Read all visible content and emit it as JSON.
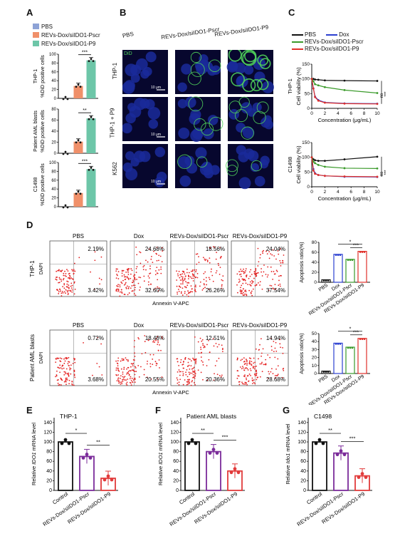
{
  "panels": {
    "A": "A",
    "B": "B",
    "C": "C",
    "D": "D",
    "E": "E",
    "F": "F",
    "G": "G"
  },
  "colors": {
    "pbs": "#8ea3d6",
    "pscr": "#f0906a",
    "p9": "#6dc6a8",
    "dox": "#2b3fd0",
    "pscr_line": "#3a9a2a",
    "p9_line": "#e0302a",
    "black": "#111111",
    "purple": "#7b2b9a",
    "red": "#e23b3b"
  },
  "panel_A": {
    "legend": [
      "PBS",
      "REVs-Dox/siIDO1-Pscr",
      "REVs-Dox/siIDO1-P9"
    ],
    "ylabel": "%DiD positive cells",
    "rows": [
      {
        "name": "THP-1",
        "sig": "***"
      },
      {
        "name": "Patient AML blasts",
        "sig": "**"
      },
      {
        "name": "C1498",
        "sig": "***"
      }
    ]
  },
  "panel_B": {
    "columns": [
      "PBS",
      "REVs-Dox/siIDO1-Pscr",
      "REVs-Dox/siIDO1-P9"
    ],
    "rows": [
      "THP-1",
      "THP-1 + P9",
      "K562"
    ],
    "stain": "DiD",
    "scale": "10 μm"
  },
  "panel_C": {
    "legend": [
      "PBS",
      "Dox",
      "REVs-Dox/siIDO1-Pscr",
      "REVs-Dox/siIDO1-P9"
    ],
    "ylabel": "Cell viability  (%)",
    "xlabel": "Concentration  (μg/mL)",
    "rows": [
      {
        "name": "THP-1",
        "sig1": "***",
        "sig2": "ns"
      },
      {
        "name": "C1498",
        "sig1": "***",
        "sig2": "ns"
      }
    ]
  },
  "panel_D": {
    "columns": [
      "PBS",
      "Dox",
      "REVs-Dox/siIDO1-Pscr",
      "REVs-Dox/siIDO1-P9"
    ],
    "xlabel": "Annexin V-APC",
    "ylabel": "DAPI",
    "rows": [
      {
        "name": "THP-1",
        "ul": [
          "2.19%",
          "24.68%",
          "18.56%",
          "24.04%"
        ],
        "lr": [
          "3.42%",
          "32.60%",
          "26.26%",
          "37.54%"
        ]
      },
      {
        "name": "Patient AML blasts",
        "ul": [
          "0.72%",
          "18.48%",
          "12.51%",
          "14.94%"
        ],
        "lr": [
          "3.68%",
          "20.55%",
          "20.36%",
          "28.68%"
        ]
      }
    ],
    "bar_ylabel": "Apoptosis ratio(%)",
    "bar_categories": [
      "PBS",
      "Dox",
      "REVs-Dox/siIDO1-Pscr",
      "REVs-Dox/siIDO1-P9"
    ],
    "bar_sig": [
      "*",
      "***"
    ]
  },
  "panels_EFG": {
    "E_title": "THP-1",
    "F_title": "Patient AML blasts",
    "G_title": "C1498",
    "ylabel_pre": "Relative ",
    "ylabel_gene_human": "IDO1",
    "ylabel_gene_mouse": "Ido1",
    "ylabel_post": " mRNA level",
    "categories": [
      "Control",
      "REVs-Dox/siIDO1-Pscr",
      "REVs-Dox/siIDO1-P9"
    ],
    "sig": [
      "**",
      "***"
    ],
    "sig_E": [
      "*",
      "**"
    ]
  },
  "chart_data": [
    {
      "type": "bar",
      "title": "THP-1",
      "categories": [
        "PBS",
        "REVs-Dox/siIDO1-Pscr",
        "REVs-Dox/siIDO1-P9"
      ],
      "values": [
        0,
        28,
        86
      ],
      "ylabel": "%DiD positive cells",
      "ylim": [
        0,
        100
      ],
      "yticks": [
        0,
        20,
        40,
        60,
        80,
        100
      ]
    },
    {
      "type": "bar",
      "title": "Patient AML blasts",
      "categories": [
        "PBS",
        "REVs-Dox/siIDO1-Pscr",
        "REVs-Dox/siIDO1-P9"
      ],
      "values": [
        0,
        21,
        63
      ],
      "ylabel": "%DiD positive cells",
      "ylim": [
        0,
        80
      ],
      "yticks": [
        0,
        20,
        40,
        60,
        80
      ]
    },
    {
      "type": "bar",
      "title": "C1498",
      "categories": [
        "PBS",
        "REVs-Dox/siIDO1-Pscr",
        "REVs-Dox/siIDO1-P9"
      ],
      "values": [
        0,
        31,
        85
      ],
      "ylabel": "%DiD positive cells",
      "ylim": [
        0,
        100
      ],
      "yticks": [
        0,
        20,
        40,
        60,
        80,
        100
      ]
    },
    {
      "type": "line",
      "title": "THP-1",
      "x": [
        0,
        0.25,
        0.5,
        1,
        2,
        5,
        10
      ],
      "series": [
        {
          "name": "PBS",
          "values": [
            100,
            100,
            98,
            97,
            95,
            94,
            93
          ]
        },
        {
          "name": "Dox",
          "values": [
            100,
            68,
            40,
            28,
            20,
            17,
            16
          ]
        },
        {
          "name": "REVs-Dox/siIDO1-Pscr",
          "values": [
            100,
            92,
            82,
            78,
            72,
            62,
            52
          ]
        },
        {
          "name": "REVs-Dox/siIDO1-P9",
          "values": [
            100,
            67,
            38,
            26,
            19,
            16,
            15
          ]
        }
      ],
      "xlabel": "Concentration  (μg/mL)",
      "ylabel": "Cell viability  (%)",
      "xlim": [
        0,
        10
      ],
      "ylim": [
        0,
        150
      ],
      "xticks": [
        0,
        2,
        4,
        6,
        8,
        10
      ],
      "yticks": [
        0,
        50,
        100,
        150
      ]
    },
    {
      "type": "line",
      "title": "C1498",
      "x": [
        0,
        0.25,
        0.5,
        1,
        2,
        5,
        10
      ],
      "series": [
        {
          "name": "PBS",
          "values": [
            100,
            93,
            90,
            88,
            88,
            93,
            102
          ]
        },
        {
          "name": "Dox",
          "values": [
            100,
            60,
            46,
            40,
            37,
            34,
            33
          ]
        },
        {
          "name": "REVs-Dox/siIDO1-Pscr",
          "values": [
            100,
            85,
            80,
            74,
            68,
            63,
            62
          ]
        },
        {
          "name": "REVs-Dox/siIDO1-P9",
          "values": [
            100,
            55,
            44,
            40,
            37,
            35,
            34
          ]
        }
      ],
      "xlabel": "Concentration  (μg/mL)",
      "ylabel": "Cell viability  (%)",
      "xlim": [
        0,
        10
      ],
      "ylim": [
        0,
        150
      ],
      "xticks": [
        0,
        2,
        4,
        6,
        8,
        10
      ],
      "yticks": [
        0,
        50,
        100,
        150
      ]
    },
    {
      "type": "bar",
      "title": "THP-1",
      "categories": [
        "PBS",
        "Dox",
        "REVs-Dox/siIDO1-Pscr",
        "REVs-Dox/siIDO1-P9"
      ],
      "values": [
        5,
        56,
        46,
        62
      ],
      "ylabel": "Apoptosis ratio(%)",
      "ylim": [
        0,
        80
      ],
      "yticks": [
        0,
        20,
        40,
        60,
        80
      ]
    },
    {
      "type": "bar",
      "title": "Patient AML blasts",
      "categories": [
        "PBS",
        "Dox",
        "REVs-Dox/siIDO1-Pscr",
        "REVs-Dox/siIDO1-P9"
      ],
      "values": [
        3,
        38,
        33,
        44
      ],
      "ylabel": "Apoptosis ratio(%)",
      "ylim": [
        0,
        50
      ],
      "yticks": [
        0,
        10,
        20,
        30,
        40,
        50
      ]
    },
    {
      "type": "bar",
      "title": "THP-1",
      "categories": [
        "Control",
        "REVs-Dox/siIDO1-Pscr",
        "REVs-Dox/siIDO1-P9"
      ],
      "values": [
        100,
        70,
        25
      ],
      "ylabel": "Relative IDO1 mRNA level",
      "ylim": [
        0,
        150
      ],
      "yticks": [
        0,
        20,
        40,
        60,
        80,
        100,
        120,
        140
      ]
    },
    {
      "type": "bar",
      "title": "Patient AML blasts",
      "categories": [
        "Control",
        "REVs-Dox/siIDO1-Pscr",
        "REVs-Dox/siIDO1-P9"
      ],
      "values": [
        100,
        80,
        40
      ],
      "ylabel": "Relative IDO1 mRNA level",
      "ylim": [
        0,
        150
      ],
      "yticks": [
        0,
        20,
        40,
        60,
        80,
        100,
        120,
        140
      ]
    },
    {
      "type": "bar",
      "title": "C1498",
      "categories": [
        "Control",
        "REVs-Dox/siIDO1-Pscr",
        "REVs-Dox/siIDO1-P9"
      ],
      "values": [
        100,
        77,
        30
      ],
      "ylabel": "Relative Ido1 mRNA level",
      "ylim": [
        0,
        150
      ],
      "yticks": [
        0,
        20,
        40,
        60,
        80,
        100,
        120,
        140
      ]
    }
  ]
}
